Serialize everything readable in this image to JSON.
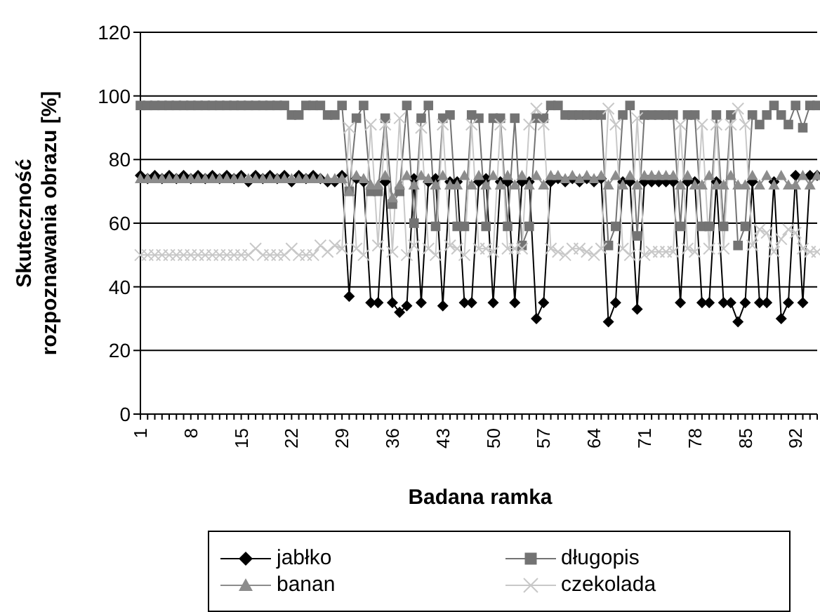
{
  "chart_data": {
    "type": "line",
    "xlabel": "Badana ramka",
    "ylabel": "Skuteczność rozpoznawania obrazu [%]",
    "categories": [
      "1",
      null,
      null,
      null,
      null,
      null,
      null,
      "8",
      null,
      null,
      null,
      null,
      null,
      null,
      "15",
      null,
      null,
      null,
      null,
      null,
      null,
      "22",
      null,
      null,
      null,
      null,
      null,
      null,
      "29",
      null,
      null,
      null,
      null,
      null,
      null,
      "36",
      null,
      null,
      null,
      null,
      null,
      null,
      "43",
      null,
      null,
      null,
      null,
      null,
      null,
      "50",
      null,
      null,
      null,
      null,
      null,
      null,
      "57",
      null,
      null,
      null,
      null,
      null,
      null,
      "64",
      null,
      null,
      null,
      null,
      null,
      null,
      "71",
      null,
      null,
      null,
      null,
      null,
      null,
      "78",
      null,
      null,
      null,
      null,
      null,
      null,
      "85",
      null,
      null,
      null,
      null,
      null,
      null,
      "92",
      null,
      null,
      null
    ],
    "series": [
      {
        "name": "jabłko",
        "color": "#000000",
        "marker": "diamond",
        "values": [
          75,
          74,
          75,
          74,
          75,
          74,
          75,
          74,
          75,
          74,
          75,
          74,
          75,
          74,
          75,
          73,
          75,
          74,
          75,
          74,
          75,
          73,
          75,
          74,
          75,
          74,
          73,
          73,
          75,
          37,
          74,
          73,
          35,
          35,
          73,
          35,
          32,
          34,
          74,
          35,
          73,
          74,
          34,
          73,
          73,
          35,
          35,
          73,
          74,
          35,
          73,
          73,
          35,
          73,
          73,
          30,
          35,
          73,
          74,
          73,
          74,
          73,
          74,
          73,
          74,
          29,
          35,
          73,
          73,
          33,
          73,
          73,
          73,
          73,
          73,
          35,
          73,
          73,
          35,
          35,
          73,
          35,
          35,
          29,
          35,
          73,
          35,
          35,
          73,
          30,
          35,
          75,
          35,
          75,
          75
        ]
      },
      {
        "name": "długopis",
        "color": "#737373",
        "marker": "square",
        "values": [
          97,
          97,
          97,
          97,
          97,
          97,
          97,
          97,
          97,
          97,
          97,
          97,
          97,
          97,
          97,
          97,
          97,
          97,
          97,
          97,
          97,
          94,
          94,
          97,
          97,
          97,
          94,
          94,
          97,
          70,
          93,
          97,
          70,
          70,
          93,
          66,
          70,
          97,
          60,
          93,
          97,
          59,
          93,
          94,
          59,
          59,
          94,
          93,
          59,
          93,
          93,
          59,
          93,
          53,
          59,
          93,
          93,
          97,
          97,
          94,
          94,
          94,
          94,
          94,
          94,
          53,
          59,
          94,
          97,
          56,
          94,
          94,
          94,
          94,
          94,
          59,
          94,
          94,
          59,
          59,
          94,
          59,
          94,
          53,
          59,
          94,
          91,
          94,
          97,
          94,
          91,
          97,
          90,
          97,
          97
        ]
      },
      {
        "name": "banan",
        "color": "#8c8c8c",
        "marker": "triangle",
        "values": [
          74,
          74,
          74,
          74,
          74,
          74,
          74,
          74,
          74,
          74,
          74,
          74,
          74,
          74,
          74,
          74,
          74,
          74,
          74,
          74,
          74,
          74,
          74,
          74,
          74,
          74,
          74,
          74,
          74,
          70,
          75,
          74,
          72,
          72,
          75,
          68,
          72,
          75,
          72,
          75,
          74,
          72,
          75,
          72,
          72,
          75,
          72,
          75,
          72,
          75,
          72,
          75,
          72,
          75,
          72,
          75,
          72,
          75,
          75,
          74,
          75,
          74,
          75,
          74,
          75,
          72,
          75,
          72,
          75,
          72,
          75,
          75,
          75,
          75,
          75,
          72,
          75,
          72,
          72,
          75,
          72,
          72,
          75,
          72,
          72,
          75,
          72,
          75,
          72,
          75,
          72,
          72,
          75,
          72,
          75
        ]
      },
      {
        "name": "czekolada",
        "color": "#c8c8c8",
        "marker": "cross",
        "values": [
          50,
          50,
          50,
          50,
          50,
          50,
          50,
          50,
          50,
          50,
          50,
          50,
          50,
          50,
          50,
          50,
          52,
          50,
          50,
          50,
          50,
          52,
          50,
          50,
          50,
          53,
          51,
          53,
          52,
          90,
          52,
          50,
          91,
          53,
          91,
          51,
          93,
          50,
          53,
          90,
          52,
          50,
          91,
          53,
          52,
          50,
          91,
          52,
          52,
          51,
          91,
          52,
          52,
          52,
          91,
          96,
          91,
          52,
          51,
          50,
          52,
          52,
          51,
          50,
          52,
          96,
          91,
          52,
          50,
          93,
          50,
          51,
          51,
          51,
          51,
          91,
          52,
          51,
          91,
          52,
          91,
          52,
          91,
          96,
          91,
          53,
          58,
          57,
          51,
          55,
          58,
          57,
          52,
          51,
          51
        ]
      }
    ],
    "ylim": [
      0,
      120
    ],
    "yticks": [
      0,
      20,
      40,
      60,
      80,
      100,
      120
    ],
    "grid": "y",
    "legend": "bottom"
  }
}
